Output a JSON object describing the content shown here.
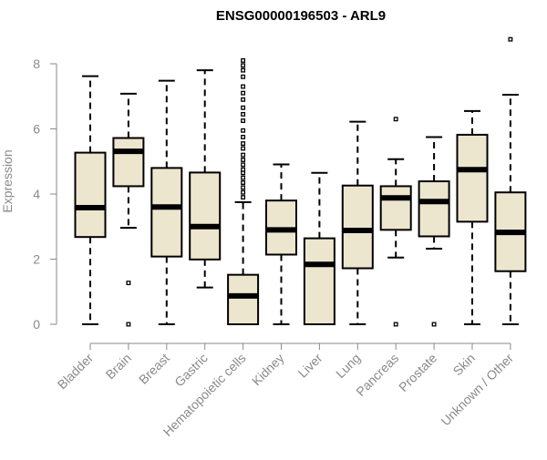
{
  "chart_data": {
    "type": "boxplot",
    "title": "ENSG00000196503 - ARL9",
    "xlabel": "",
    "ylabel": "Expression",
    "ylim": [
      0,
      8.8
    ],
    "yticks": [
      0,
      2,
      4,
      6,
      8
    ],
    "box_color": "#ede6cf",
    "axis_color": "#8a8a8a",
    "categories": [
      "Bladder",
      "Brain",
      "Breast",
      "Gastric",
      "Hematopoietic cells",
      "Kidney",
      "Liver",
      "Lung",
      "Pancreas",
      "Prostate",
      "Skin",
      "Unknown / Other"
    ],
    "series": [
      {
        "name": "Bladder",
        "min": 0,
        "q1": 2.68,
        "median": 3.58,
        "q3": 5.27,
        "max": 7.62,
        "outliers": []
      },
      {
        "name": "Brain",
        "min": 2.96,
        "q1": 4.24,
        "median": 5.31,
        "q3": 5.72,
        "max": 7.08,
        "outliers": [
          1.27,
          0
        ]
      },
      {
        "name": "Breast",
        "min": 0,
        "q1": 2.08,
        "median": 3.6,
        "q3": 4.8,
        "max": 7.48,
        "outliers": []
      },
      {
        "name": "Gastric",
        "min": 1.13,
        "q1": 1.99,
        "median": 3.0,
        "q3": 4.66,
        "max": 7.8,
        "outliers": []
      },
      {
        "name": "Hematopoietic cells",
        "min": 0,
        "q1": 0,
        "median": 0.87,
        "q3": 1.52,
        "max": 3.75,
        "outliers": [
          3.9,
          4.05,
          4.2,
          4.35,
          4.5,
          4.65,
          4.75,
          4.9,
          5.05,
          5.2,
          5.4,
          5.55,
          5.75,
          5.95,
          6.25,
          6.45,
          6.65,
          6.9,
          7.1,
          7.3,
          7.6,
          7.8,
          7.95,
          8.1
        ]
      },
      {
        "name": "Kidney",
        "min": 0,
        "q1": 2.14,
        "median": 2.9,
        "q3": 3.8,
        "max": 4.91,
        "outliers": []
      },
      {
        "name": "Liver",
        "min": 0,
        "q1": 0,
        "median": 1.84,
        "q3": 2.64,
        "max": 4.65,
        "outliers": []
      },
      {
        "name": "Lung",
        "min": 0,
        "q1": 1.72,
        "median": 2.88,
        "q3": 4.26,
        "max": 6.22,
        "outliers": []
      },
      {
        "name": "Pancreas",
        "min": 2.05,
        "q1": 2.9,
        "median": 3.88,
        "q3": 4.24,
        "max": 5.07,
        "outliers": [
          6.3,
          0
        ]
      },
      {
        "name": "Prostate",
        "min": 2.32,
        "q1": 2.7,
        "median": 3.77,
        "q3": 4.39,
        "max": 5.75,
        "outliers": [
          0
        ]
      },
      {
        "name": "Skin",
        "min": 0,
        "q1": 3.15,
        "median": 4.75,
        "q3": 5.82,
        "max": 6.55,
        "outliers": []
      },
      {
        "name": "Unknown / Other",
        "min": 0,
        "q1": 1.63,
        "median": 2.82,
        "q3": 4.05,
        "max": 7.05,
        "outliers": [
          8.75
        ]
      }
    ]
  }
}
